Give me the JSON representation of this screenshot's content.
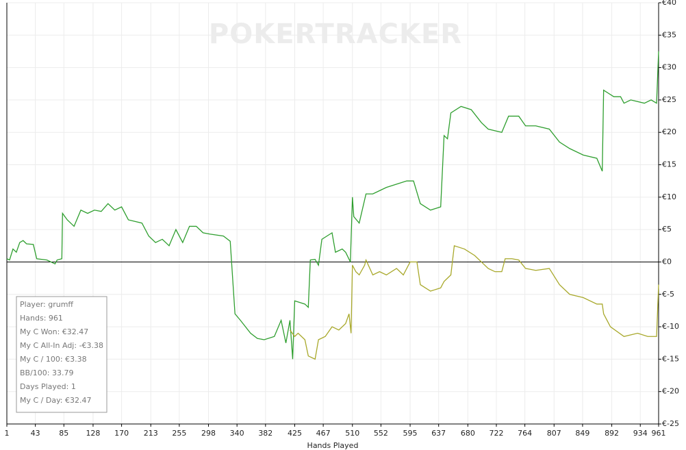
{
  "chart_data": {
    "type": "line",
    "watermark": "POKERTRACKER",
    "x_label": "Hands Played",
    "xlim": [
      1,
      961
    ],
    "xticks": [
      1,
      43,
      85,
      128,
      170,
      213,
      255,
      298,
      340,
      382,
      425,
      467,
      510,
      552,
      595,
      637,
      680,
      722,
      764,
      807,
      849,
      892,
      934,
      961
    ],
    "ylim": [
      -25,
      40
    ],
    "yticks": [
      {
        "value": -25,
        "label": "€-25"
      },
      {
        "value": -20,
        "label": "€-20"
      },
      {
        "value": -15,
        "label": "€-15"
      },
      {
        "value": -10,
        "label": "€-10"
      },
      {
        "value": -5,
        "label": "€-5"
      },
      {
        "value": 0,
        "label": "€0"
      },
      {
        "value": 5,
        "label": "€5"
      },
      {
        "value": 10,
        "label": "€10"
      },
      {
        "value": 15,
        "label": "€15"
      },
      {
        "value": 20,
        "label": "€20"
      },
      {
        "value": 25,
        "label": "€25"
      },
      {
        "value": 30,
        "label": "€30"
      },
      {
        "value": 35,
        "label": "€35"
      },
      {
        "value": 40,
        "label": "€40"
      }
    ],
    "grid": true,
    "series": [
      {
        "color": "#2e9e2e",
        "x": [
          1,
          5,
          10,
          15,
          20,
          25,
          30,
          40,
          45,
          60,
          72,
          75,
          82,
          83,
          90,
          100,
          110,
          120,
          130,
          140,
          150,
          160,
          170,
          180,
          200,
          210,
          220,
          230,
          240,
          250,
          260,
          270,
          280,
          290,
          300,
          320,
          330,
          337,
          345,
          360,
          370,
          380,
          395,
          405,
          412,
          418,
          422,
          425,
          440,
          445,
          448,
          455,
          460,
          465,
          480,
          485,
          495,
          500,
          507,
          510,
          512,
          520,
          530,
          540,
          550,
          560,
          575,
          590,
          600,
          610,
          625,
          640,
          645,
          650,
          655,
          670,
          685,
          700,
          710,
          730,
          740,
          755,
          765,
          780,
          800,
          815,
          830,
          850,
          870,
          878,
          880,
          895,
          905,
          910,
          920,
          940,
          950,
          958,
          961
        ],
        "values": [
          0.5,
          0.3,
          2,
          1.5,
          3,
          3.3,
          2.8,
          2.7,
          0.5,
          0.3,
          -0.3,
          0.3,
          0.5,
          7.5,
          6.5,
          5.5,
          8,
          7.5,
          8,
          7.8,
          9,
          8,
          8.5,
          6.5,
          6,
          4,
          3,
          3.5,
          2.5,
          5,
          3,
          5.5,
          5.5,
          4.5,
          4.3,
          4,
          3.2,
          -8,
          -9,
          -11,
          -11.8,
          -12,
          -11.5,
          -9,
          -12.5,
          -9,
          -15,
          -6,
          -6.5,
          -7,
          0.3,
          0.4,
          -0.5,
          3.5,
          4.5,
          1.5,
          2,
          1.5,
          0,
          10,
          7,
          6,
          10.5,
          10.5,
          11,
          11.5,
          12,
          12.5,
          12.5,
          9,
          8,
          8.5,
          19.5,
          19,
          23,
          24,
          23.5,
          21.5,
          20.5,
          20,
          22.5,
          22.5,
          21,
          21,
          20.5,
          18.5,
          17.5,
          16.5,
          16,
          14,
          26.5,
          25.5,
          25.5,
          24.5,
          25,
          24.5,
          25,
          24.5,
          32.5
        ]
      },
      {
        "color": "#a8a82a",
        "x": [
          418,
          425,
          430,
          440,
          445,
          455,
          460,
          470,
          480,
          490,
          500,
          505,
          508,
          510,
          515,
          520,
          528,
          530,
          540,
          550,
          560,
          575,
          585,
          595,
          605,
          610,
          625,
          640,
          645,
          655,
          660,
          675,
          690,
          700,
          710,
          720,
          730,
          735,
          745,
          755,
          765,
          780,
          800,
          815,
          830,
          850,
          870,
          878,
          880,
          890,
          910,
          930,
          945,
          958,
          961
        ],
        "values": [
          -10.5,
          -11.5,
          -11,
          -12,
          -14.5,
          -15,
          -12,
          -11.5,
          -10,
          -10.5,
          -9.5,
          -8,
          -11,
          -0.5,
          -1.5,
          -2,
          -0.5,
          0.3,
          -2,
          -1.5,
          -2,
          -1,
          -2,
          0,
          0,
          -3.5,
          -4.5,
          -4,
          -3,
          -2,
          2.5,
          2,
          1,
          0,
          -1,
          -1.5,
          -1.5,
          0.5,
          0.5,
          0.3,
          -1,
          -1.3,
          -1,
          -3.5,
          -5,
          -5.5,
          -6.5,
          -6.5,
          -8,
          -10,
          -11.5,
          -11,
          -11.5,
          -11.5,
          -3.5
        ]
      }
    ],
    "annotations": [
      "Player: grumff",
      "Hands: 961",
      "My C Won: €32.47",
      "My C All-In Adj: -€3.38",
      "My C / 100: €3.38",
      "BB/100: 33.79",
      "Days Played: 1",
      "My C / Day: €32.47"
    ]
  }
}
